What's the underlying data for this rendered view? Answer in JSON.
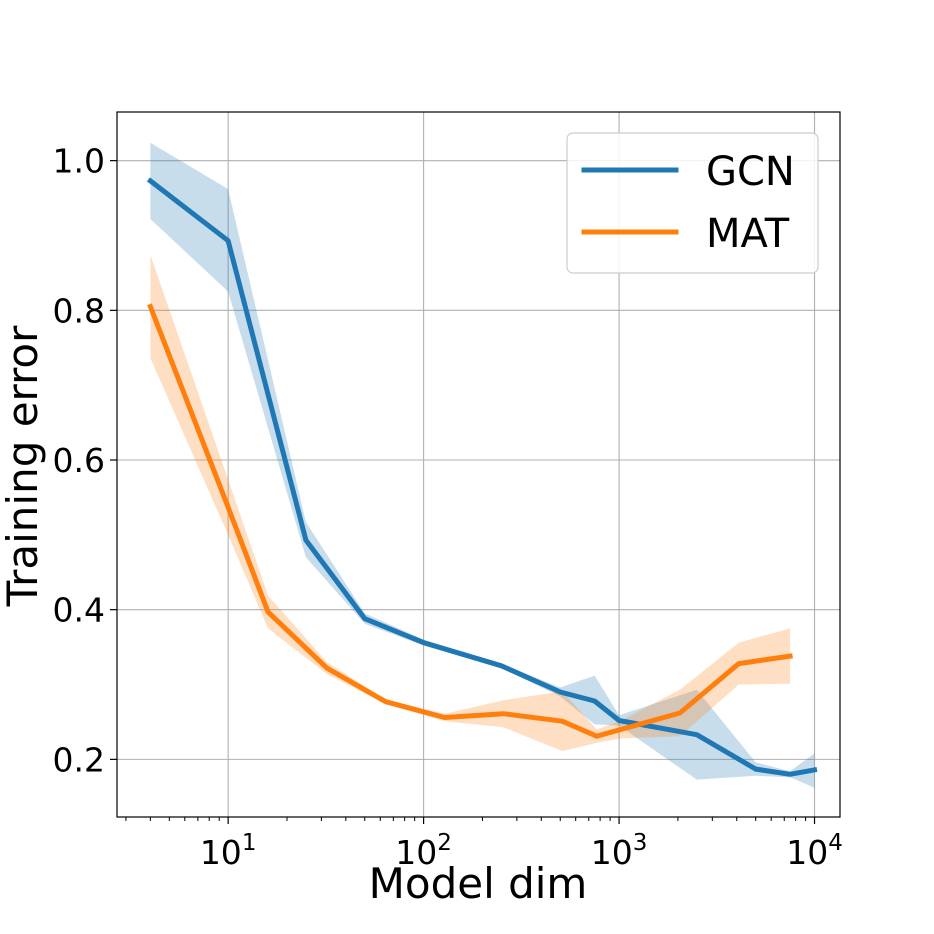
{
  "chart_data": {
    "type": "line",
    "title": "",
    "xlabel": "Model dim",
    "ylabel": "Training error",
    "xscale": "log",
    "xlim": [
      2.7,
      13500
    ],
    "ylim": [
      0.123,
      1.065
    ],
    "grid": true,
    "legend_position": "top-right",
    "x_ticks": [
      {
        "value": 10,
        "base": "10",
        "exp": "1"
      },
      {
        "value": 100,
        "base": "10",
        "exp": "2"
      },
      {
        "value": 1000,
        "base": "10",
        "exp": "3"
      },
      {
        "value": 10000,
        "base": "10",
        "exp": "4"
      }
    ],
    "y_ticks": [
      {
        "value": 0.2,
        "label": "0.2"
      },
      {
        "value": 0.4,
        "label": "0.4"
      },
      {
        "value": 0.6,
        "label": "0.6"
      },
      {
        "value": 0.8,
        "label": "0.8"
      },
      {
        "value": 1.0,
        "label": "1.0"
      }
    ],
    "series": [
      {
        "name": "GCN",
        "color": "#1f77b4",
        "x": [
          4,
          10,
          25,
          50,
          100,
          250,
          500,
          750,
          1000,
          2500,
          5000,
          7500,
          10000
        ],
        "y": [
          0.973,
          0.893,
          0.493,
          0.388,
          0.356,
          0.325,
          0.29,
          0.278,
          0.252,
          0.233,
          0.187,
          0.18,
          0.186
        ],
        "lower": [
          0.922,
          0.825,
          0.47,
          0.381,
          0.352,
          0.322,
          0.284,
          0.247,
          0.245,
          0.173,
          0.178,
          0.176,
          0.162
        ],
        "upper": [
          1.024,
          0.962,
          0.517,
          0.395,
          0.36,
          0.328,
          0.296,
          0.312,
          0.259,
          0.293,
          0.196,
          0.184,
          0.208
        ]
      },
      {
        "name": "MAT",
        "color": "#ff7f0e",
        "x": [
          4,
          10,
          16,
          32,
          64,
          128,
          256,
          512,
          768,
          1024,
          2048,
          4096,
          7500
        ],
        "y": [
          0.805,
          0.537,
          0.397,
          0.322,
          0.277,
          0.256,
          0.261,
          0.251,
          0.231,
          0.24,
          0.262,
          0.328,
          0.338
        ],
        "lower": [
          0.736,
          0.5,
          0.375,
          0.314,
          0.274,
          0.251,
          0.243,
          0.211,
          0.222,
          0.228,
          0.231,
          0.3,
          0.301
        ],
        "upper": [
          0.874,
          0.574,
          0.419,
          0.33,
          0.28,
          0.261,
          0.279,
          0.291,
          0.24,
          0.252,
          0.293,
          0.356,
          0.375
        ]
      }
    ]
  }
}
